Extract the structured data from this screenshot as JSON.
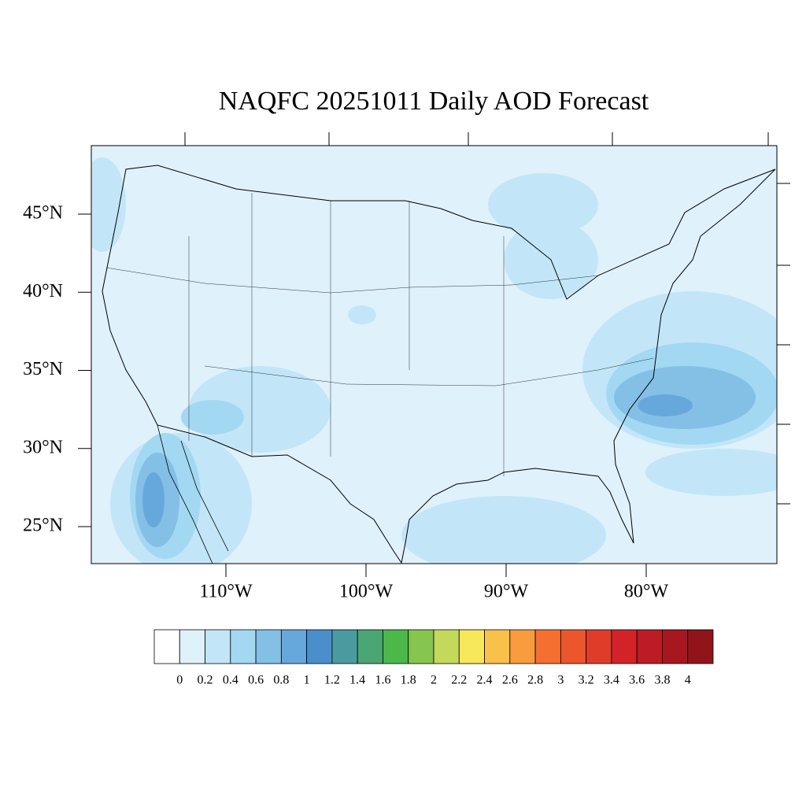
{
  "title": "NAQFC 20251011 Daily AOD Forecast",
  "map": {
    "lat_ticks": [
      {
        "value": 45,
        "label": "45°N"
      },
      {
        "value": 40,
        "label": "40°N"
      },
      {
        "value": 35,
        "label": "35°N"
      },
      {
        "value": 30,
        "label": "30°N"
      },
      {
        "value": 25,
        "label": "25°N"
      }
    ],
    "lon_ticks": [
      {
        "value": -110,
        "label": "110°W"
      },
      {
        "value": -100,
        "label": "100°W"
      },
      {
        "value": -90,
        "label": "90°W"
      },
      {
        "value": -80,
        "label": "80°W"
      }
    ]
  },
  "colorbar": {
    "levels": [
      0,
      0.2,
      0.4,
      0.6,
      0.8,
      1,
      1.2,
      1.4,
      1.6,
      1.8,
      2,
      2.2,
      2.4,
      2.6,
      2.8,
      3,
      3.2,
      3.4,
      3.6,
      3.8,
      4
    ],
    "colors": [
      "#ffffff",
      "#dff1fb",
      "#c2e6f8",
      "#a3d8f3",
      "#84bfe6",
      "#67a8dc",
      "#4a8fcb",
      "#4a9ba0",
      "#4aa673",
      "#4cb84a",
      "#86c54e",
      "#c4d85b",
      "#f7e75b",
      "#f9c04a",
      "#f89c3e",
      "#f57030",
      "#ec562d",
      "#e03c2a",
      "#d42229",
      "#bd1c24",
      "#a8171f",
      "#92141b"
    ]
  }
}
